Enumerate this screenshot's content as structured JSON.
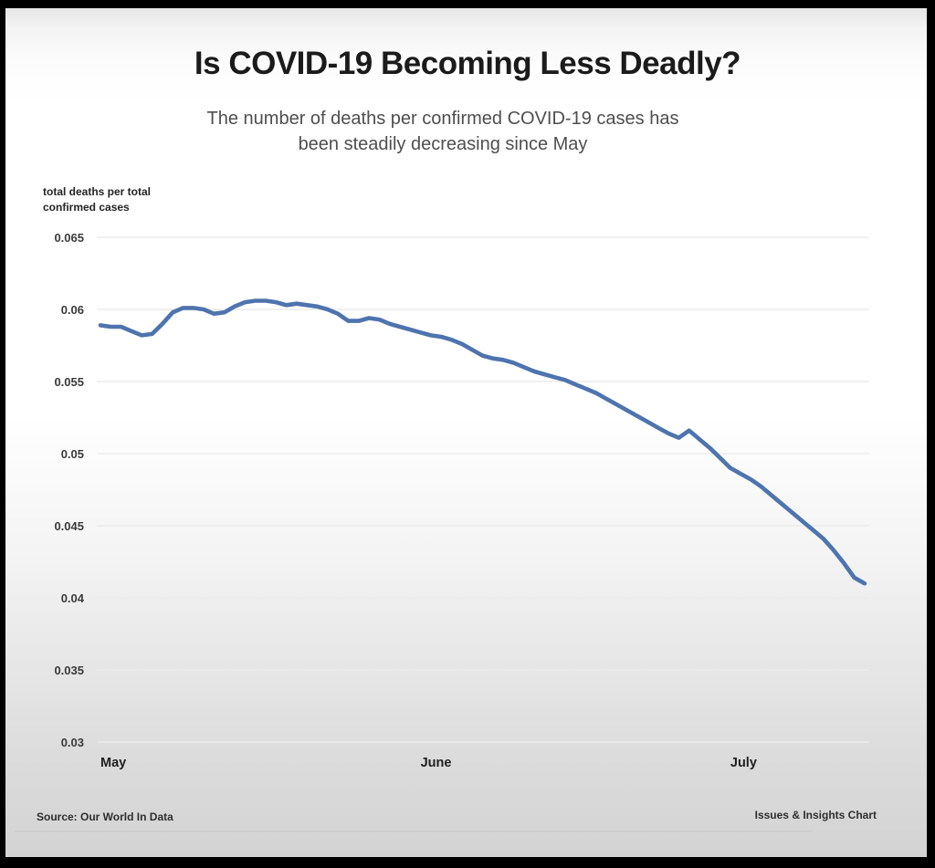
{
  "page": {
    "title": "Is COVID-19 Becoming Less Deadly?",
    "subtitle": [
      "The number of deaths per confirmed COVID-19 cases has",
      "been steadily decreasing since May"
    ],
    "y_axis_unit": [
      "total deaths per total",
      "confirmed cases"
    ],
    "source": "Source: Our World In Data",
    "credit": "Issues & Insights Chart"
  },
  "colors": {
    "line": "#4e74ae",
    "grid": "#ececec",
    "title_text": "#1b1b1b",
    "subtitle_text": "#4e4e4e",
    "axis_text": "#3a3a3a",
    "frame": "#000000"
  },
  "chart_data": {
    "type": "line",
    "title": "Is COVID-19 Becoming Less Deadly?",
    "subtitle": "The number of deaths per confirmed COVID-19 cases has been steadily decreasing since May",
    "ylabel": "total deaths per total confirmed cases",
    "xlabel": "",
    "grid": true,
    "legend": false,
    "ylim": [
      0.03,
      0.065
    ],
    "yticks": [
      0.065,
      0.06,
      0.055,
      0.05,
      0.045,
      0.04,
      0.035,
      0.03
    ],
    "x_months": [
      {
        "label": "May",
        "day": 0
      },
      {
        "label": "June",
        "day": 31
      },
      {
        "label": "July",
        "day": 61
      }
    ],
    "x_range": [
      "May 1",
      "July 14"
    ],
    "x_unit": "day",
    "series": [
      {
        "name": "total deaths per total confirmed cases",
        "values": [
          0.0589,
          0.0588,
          0.0588,
          0.0585,
          0.0582,
          0.0583,
          0.059,
          0.0598,
          0.0601,
          0.0601,
          0.06,
          0.0597,
          0.0598,
          0.0602,
          0.0605,
          0.0606,
          0.0606,
          0.0605,
          0.0603,
          0.0604,
          0.0603,
          0.0602,
          0.06,
          0.0597,
          0.0592,
          0.0592,
          0.0594,
          0.0593,
          0.059,
          0.0588,
          0.0586,
          0.0584,
          0.0582,
          0.0581,
          0.0579,
          0.0576,
          0.0572,
          0.0568,
          0.0566,
          0.0565,
          0.0563,
          0.056,
          0.0557,
          0.0555,
          0.0553,
          0.0551,
          0.0548,
          0.0545,
          0.0542,
          0.0538,
          0.0534,
          0.053,
          0.0526,
          0.0522,
          0.0518,
          0.0514,
          0.0511,
          0.0516,
          0.051,
          0.0504,
          0.0497,
          0.049,
          0.0486,
          0.0482,
          0.0477,
          0.0471,
          0.0465,
          0.0459,
          0.0453,
          0.0447,
          0.0441,
          0.0433,
          0.0424,
          0.0414,
          0.041
        ]
      }
    ],
    "source": "Source: Our World In Data",
    "credit": "Issues & Insights Chart"
  }
}
